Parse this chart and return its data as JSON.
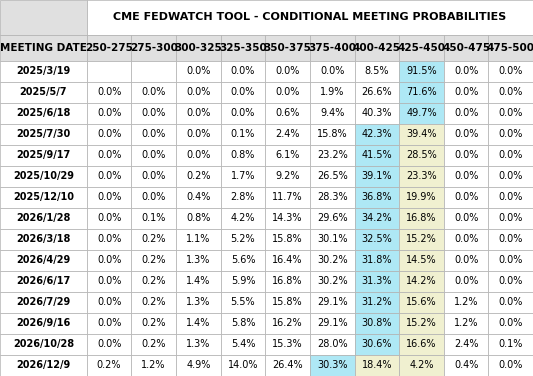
{
  "title": "CME FEDWATCH TOOL - CONDITIONAL MEETING PROBABILITIES",
  "columns": [
    "MEETING DATE",
    "250-275",
    "275-300",
    "300-325",
    "325-350",
    "350-375",
    "375-400",
    "400-425",
    "425-450",
    "450-475",
    "475-500"
  ],
  "rows": [
    [
      "2025/3/19",
      "",
      "",
      "0.0%",
      "0.0%",
      "0.0%",
      "0.0%",
      "8.5%",
      "91.5%",
      "0.0%",
      "0.0%"
    ],
    [
      "2025/5/7",
      "0.0%",
      "0.0%",
      "0.0%",
      "0.0%",
      "0.0%",
      "1.9%",
      "26.6%",
      "71.6%",
      "0.0%",
      "0.0%"
    ],
    [
      "2025/6/18",
      "0.0%",
      "0.0%",
      "0.0%",
      "0.0%",
      "0.6%",
      "9.4%",
      "40.3%",
      "49.7%",
      "0.0%",
      "0.0%"
    ],
    [
      "2025/7/30",
      "0.0%",
      "0.0%",
      "0.0%",
      "0.1%",
      "2.4%",
      "15.8%",
      "42.3%",
      "39.4%",
      "0.0%",
      "0.0%"
    ],
    [
      "2025/9/17",
      "0.0%",
      "0.0%",
      "0.0%",
      "0.8%",
      "6.1%",
      "23.2%",
      "41.5%",
      "28.5%",
      "0.0%",
      "0.0%"
    ],
    [
      "2025/10/29",
      "0.0%",
      "0.0%",
      "0.2%",
      "1.7%",
      "9.2%",
      "26.5%",
      "39.1%",
      "23.3%",
      "0.0%",
      "0.0%"
    ],
    [
      "2025/12/10",
      "0.0%",
      "0.0%",
      "0.4%",
      "2.8%",
      "11.7%",
      "28.3%",
      "36.8%",
      "19.9%",
      "0.0%",
      "0.0%"
    ],
    [
      "2026/1/28",
      "0.0%",
      "0.1%",
      "0.8%",
      "4.2%",
      "14.3%",
      "29.6%",
      "34.2%",
      "16.8%",
      "0.0%",
      "0.0%"
    ],
    [
      "2026/3/18",
      "0.0%",
      "0.2%",
      "1.1%",
      "5.2%",
      "15.8%",
      "30.1%",
      "32.5%",
      "15.2%",
      "0.0%",
      "0.0%"
    ],
    [
      "2026/4/29",
      "0.0%",
      "0.2%",
      "1.3%",
      "5.6%",
      "16.4%",
      "30.2%",
      "31.8%",
      "14.5%",
      "0.0%",
      "0.0%"
    ],
    [
      "2026/6/17",
      "0.0%",
      "0.2%",
      "1.4%",
      "5.9%",
      "16.8%",
      "30.2%",
      "31.3%",
      "14.2%",
      "0.0%",
      "0.0%"
    ],
    [
      "2026/7/29",
      "0.0%",
      "0.2%",
      "1.3%",
      "5.5%",
      "15.8%",
      "29.1%",
      "31.2%",
      "15.6%",
      "1.2%",
      "0.0%"
    ],
    [
      "2026/9/16",
      "0.0%",
      "0.2%",
      "1.4%",
      "5.8%",
      "16.2%",
      "29.1%",
      "30.8%",
      "15.2%",
      "1.2%",
      "0.0%"
    ],
    [
      "2026/10/28",
      "0.0%",
      "0.2%",
      "1.3%",
      "5.4%",
      "15.3%",
      "28.0%",
      "30.6%",
      "16.6%",
      "2.4%",
      "0.1%"
    ],
    [
      "2026/12/9",
      "0.2%",
      "1.2%",
      "4.9%",
      "14.0%",
      "26.4%",
      "30.3%",
      "18.4%",
      "4.2%",
      "0.4%",
      "0.0%"
    ]
  ],
  "cell_colors": [
    [
      "white",
      "white",
      "white",
      "white",
      "white",
      "white",
      "white",
      "white",
      "#aee8f5",
      "white",
      "white"
    ],
    [
      "white",
      "white",
      "white",
      "white",
      "white",
      "white",
      "white",
      "white",
      "#aee8f5",
      "white",
      "white"
    ],
    [
      "white",
      "white",
      "white",
      "white",
      "white",
      "white",
      "white",
      "white",
      "#aee8f5",
      "white",
      "white"
    ],
    [
      "white",
      "white",
      "white",
      "white",
      "white",
      "white",
      "white",
      "#aee8f5",
      "#f0f0d0",
      "white",
      "white"
    ],
    [
      "white",
      "white",
      "white",
      "white",
      "white",
      "white",
      "white",
      "#aee8f5",
      "#f0f0d0",
      "white",
      "white"
    ],
    [
      "white",
      "white",
      "white",
      "white",
      "white",
      "white",
      "white",
      "#aee8f5",
      "#f0f0d0",
      "white",
      "white"
    ],
    [
      "white",
      "white",
      "white",
      "white",
      "white",
      "white",
      "white",
      "#aee8f5",
      "#f0f0d0",
      "white",
      "white"
    ],
    [
      "white",
      "white",
      "white",
      "white",
      "white",
      "white",
      "white",
      "#aee8f5",
      "#f0f0d0",
      "white",
      "white"
    ],
    [
      "white",
      "white",
      "white",
      "white",
      "white",
      "white",
      "white",
      "#aee8f5",
      "#f0f0d0",
      "white",
      "white"
    ],
    [
      "white",
      "white",
      "white",
      "white",
      "white",
      "white",
      "white",
      "#aee8f5",
      "#f0f0d0",
      "white",
      "white"
    ],
    [
      "white",
      "white",
      "white",
      "white",
      "white",
      "white",
      "white",
      "#aee8f5",
      "#f0f0d0",
      "white",
      "white"
    ],
    [
      "white",
      "white",
      "white",
      "white",
      "white",
      "white",
      "white",
      "#aee8f5",
      "#f0f0d0",
      "white",
      "white"
    ],
    [
      "white",
      "white",
      "white",
      "white",
      "white",
      "white",
      "white",
      "#aee8f5",
      "#f0f0d0",
      "white",
      "white"
    ],
    [
      "white",
      "white",
      "white",
      "white",
      "white",
      "white",
      "white",
      "#aee8f5",
      "#f0f0d0",
      "white",
      "white"
    ],
    [
      "white",
      "white",
      "white",
      "white",
      "white",
      "white",
      "#aee8f5",
      "#f0f0d0",
      "#f0f0d0",
      "white",
      "white"
    ]
  ],
  "header_bg": "#e0e0e0",
  "title_bg": "white",
  "border_color": "#b0b0b0",
  "text_color": "#000000",
  "font_size": 7.0,
  "header_font_size": 7.5,
  "title_font_size": 8.0,
  "col_widths_rel": [
    1.75,
    0.9,
    0.9,
    0.9,
    0.9,
    0.9,
    0.9,
    0.9,
    0.9,
    0.9,
    0.9
  ]
}
